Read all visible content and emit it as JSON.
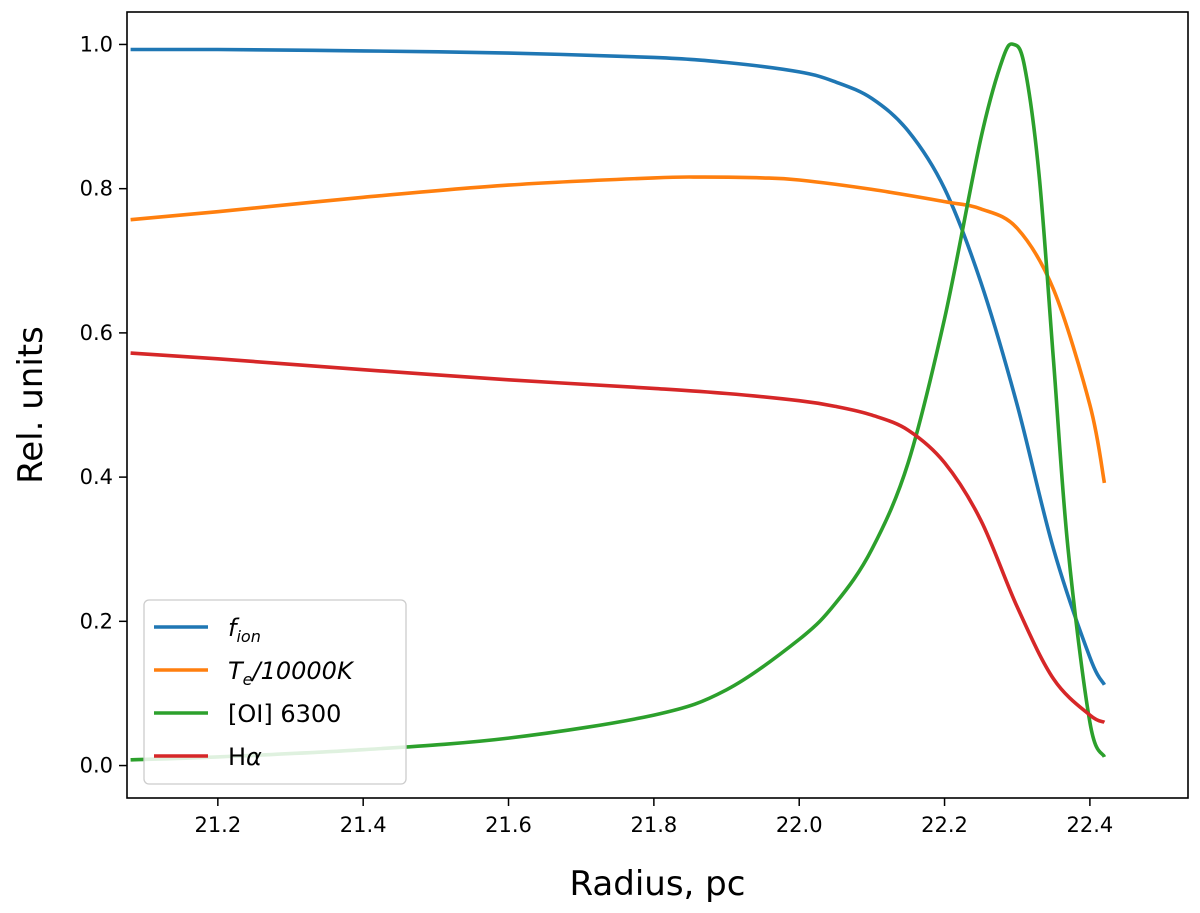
{
  "chart_data": {
    "type": "line",
    "xlabel": "Radius, pc",
    "ylabel": "Rel. units",
    "xlim": [
      21.075,
      22.535
    ],
    "ylim": [
      -0.045,
      1.045
    ],
    "xticks": [
      21.2,
      21.4,
      21.6,
      21.8,
      22.0,
      22.2,
      22.4
    ],
    "xtick_labels": [
      "21.2",
      "21.4",
      "21.6",
      "21.8",
      "22.0",
      "22.2",
      "22.4"
    ],
    "yticks": [
      0.0,
      0.2,
      0.4,
      0.6,
      0.8,
      1.0
    ],
    "ytick_labels": [
      "0.0",
      "0.2",
      "0.4",
      "0.6",
      "0.8",
      "1.0"
    ],
    "grid": false,
    "legend_position": "lower-left",
    "series": [
      {
        "name": "f_ion",
        "legend_main": "f",
        "legend_sub": "ion",
        "legend_rest": "",
        "color": "#1f77b4",
        "x": [
          21.08,
          21.2,
          21.4,
          21.6,
          21.8,
          21.9,
          22.0,
          22.05,
          22.1,
          22.15,
          22.2,
          22.25,
          22.3,
          22.35,
          22.4,
          22.42
        ],
        "y": [
          0.993,
          0.993,
          0.991,
          0.988,
          0.982,
          0.975,
          0.962,
          0.948,
          0.925,
          0.88,
          0.8,
          0.67,
          0.5,
          0.3,
          0.15,
          0.112
        ]
      },
      {
        "name": "Te/10000K",
        "legend_main": "T",
        "legend_sub": "e",
        "legend_rest": "/10000K",
        "color": "#ff7f0e",
        "x": [
          21.08,
          21.2,
          21.4,
          21.6,
          21.8,
          21.87,
          21.95,
          22.0,
          22.1,
          22.2,
          22.25,
          22.3,
          22.35,
          22.4,
          22.42
        ],
        "y": [
          0.757,
          0.768,
          0.788,
          0.805,
          0.815,
          0.816,
          0.815,
          0.812,
          0.799,
          0.782,
          0.772,
          0.745,
          0.66,
          0.5,
          0.392
        ]
      },
      {
        "name": "[OI] 6300",
        "legend_main": "[OI] 6300",
        "legend_sub": "",
        "legend_rest": "",
        "color": "#2ca02c",
        "x": [
          21.08,
          21.2,
          21.4,
          21.6,
          21.8,
          21.9,
          22.0,
          22.05,
          22.1,
          22.15,
          22.2,
          22.25,
          22.28,
          22.295,
          22.31,
          22.33,
          22.35,
          22.37,
          22.4,
          22.42
        ],
        "y": [
          0.008,
          0.012,
          0.022,
          0.038,
          0.07,
          0.105,
          0.175,
          0.225,
          0.3,
          0.42,
          0.62,
          0.87,
          0.98,
          1.0,
          0.97,
          0.82,
          0.56,
          0.3,
          0.06,
          0.012
        ]
      },
      {
        "name": "Hα",
        "legend_main": "H",
        "legend_sub": "",
        "legend_rest": "α",
        "color": "#d62728",
        "x": [
          21.08,
          21.2,
          21.4,
          21.6,
          21.8,
          21.9,
          22.0,
          22.05,
          22.1,
          22.15,
          22.2,
          22.25,
          22.3,
          22.35,
          22.4,
          22.42
        ],
        "y": [
          0.572,
          0.564,
          0.549,
          0.535,
          0.523,
          0.516,
          0.506,
          0.498,
          0.486,
          0.465,
          0.42,
          0.34,
          0.22,
          0.12,
          0.07,
          0.06
        ]
      }
    ]
  }
}
